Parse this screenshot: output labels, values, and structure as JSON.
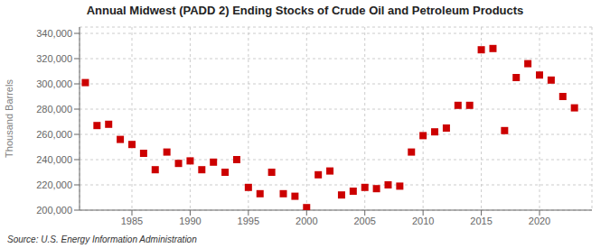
{
  "chart_data": {
    "type": "scatter",
    "title": "Annual Midwest (PADD 2) Ending Stocks of Crude Oil and Petroleum Products",
    "y_label": "Thousand Barrels",
    "annotations": [
      "Source: U.S. Energy Information Administration"
    ],
    "x": [
      1981,
      1982,
      1983,
      1984,
      1985,
      1986,
      1987,
      1988,
      1989,
      1990,
      1991,
      1992,
      1993,
      1994,
      1995,
      1996,
      1997,
      1998,
      1999,
      2000,
      2001,
      2002,
      2003,
      2004,
      2005,
      2006,
      2007,
      2008,
      2009,
      2010,
      2011,
      2012,
      2013,
      2014,
      2015,
      2016,
      2017,
      2018,
      2019,
      2020,
      2021,
      2022,
      2023
    ],
    "values": [
      301000,
      267000,
      268000,
      256000,
      252000,
      245000,
      232000,
      246000,
      237000,
      239000,
      232000,
      238000,
      230000,
      240000,
      218000,
      213000,
      230000,
      213000,
      211000,
      202000,
      228000,
      231000,
      212000,
      215000,
      218000,
      217000,
      220000,
      219000,
      246000,
      259000,
      262000,
      265000,
      283000,
      283000,
      327000,
      328000,
      263000,
      305000,
      316000,
      307000,
      303000,
      290000,
      281000
    ],
    "color": "#cc0000",
    "marker": "square",
    "xlim": [
      1980.5,
      2024.5
    ],
    "xticks": [
      1985,
      1990,
      1995,
      2000,
      2005,
      2010,
      2015,
      2020
    ],
    "ylim": [
      200000,
      345000
    ],
    "yticks": [
      {
        "value": 200000,
        "label": "200,000"
      },
      {
        "value": 220000,
        "label": "220,000"
      },
      {
        "value": 240000,
        "label": "240,000"
      },
      {
        "value": 260000,
        "label": "260,000"
      },
      {
        "value": 280000,
        "label": "280,000"
      },
      {
        "value": 300000,
        "label": "300,000"
      },
      {
        "value": 320000,
        "label": "320,000"
      },
      {
        "value": 340000,
        "label": "340,000"
      }
    ],
    "grid": true
  }
}
